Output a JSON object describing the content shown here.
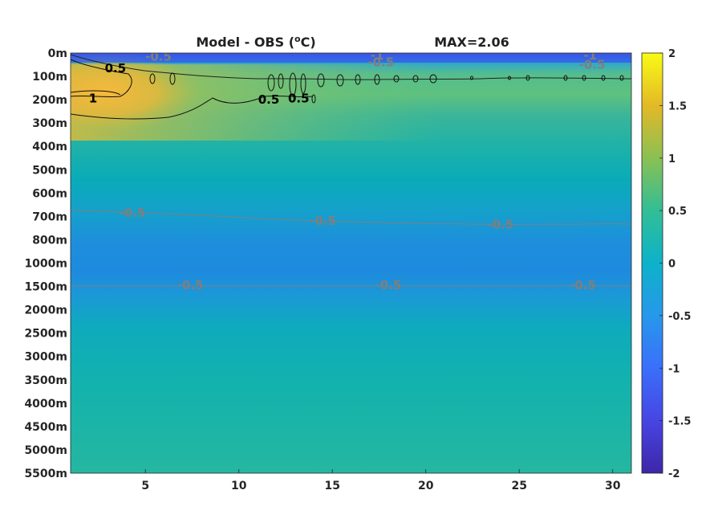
{
  "chart_data": {
    "type": "heatmap",
    "title": "Model - OBS (°C)",
    "title_parts": {
      "prefix": "Model - OBS (",
      "superscript": "o",
      "suffix": "C)"
    },
    "max_label": "MAX=2.06",
    "xlabel": "",
    "ylabel": "",
    "x_range": [
      1,
      31
    ],
    "x_ticks": [
      5,
      10,
      15,
      20,
      25,
      30
    ],
    "y_tick_labels": [
      "0m",
      "100m",
      "200m",
      "300m",
      "400m",
      "500m",
      "600m",
      "700m",
      "800m",
      "1000m",
      "1500m",
      "2000m",
      "2500m",
      "3000m",
      "3500m",
      "4000m",
      "4500m",
      "5000m",
      "5500m"
    ],
    "colorbar": {
      "range": [
        -2,
        2
      ],
      "ticks": [
        "2",
        "1.5",
        "1",
        "0.5",
        "0",
        "-0.5",
        "-1",
        "-1.5",
        "-2"
      ],
      "colormap": "parula"
    },
    "grid": false,
    "field_profile_by_depth_level": [
      {
        "depth": "0m",
        "value": -1.3
      },
      {
        "depth": "100m",
        "value": 0.9
      },
      {
        "depth": "200m",
        "value": 0.7
      },
      {
        "depth": "300m",
        "value": 0.2
      },
      {
        "depth": "400m",
        "value": 0.05
      },
      {
        "depth": "500m",
        "value": -0.2
      },
      {
        "depth": "600m",
        "value": -0.4
      },
      {
        "depth": "700m",
        "value": -0.55
      },
      {
        "depth": "800m",
        "value": -0.75
      },
      {
        "depth": "1000m",
        "value": -0.8
      },
      {
        "depth": "1500m",
        "value": -0.55
      },
      {
        "depth": "2000m",
        "value": -0.35
      },
      {
        "depth": "2500m",
        "value": -0.2
      },
      {
        "depth": "3000m",
        "value": -0.1
      },
      {
        "depth": "3500m",
        "value": 0.0
      },
      {
        "depth": "4000m",
        "value": 0.05
      },
      {
        "depth": "4500m",
        "value": 0.08
      },
      {
        "depth": "5000m",
        "value": 0.1
      },
      {
        "depth": "5500m",
        "value": 0.1
      }
    ],
    "warm_anomaly_core": {
      "x_range": [
        1,
        5
      ],
      "value": 1.5
    },
    "contour_labels": [
      {
        "text": "0.5",
        "x": 3.4,
        "y_level": 0.65,
        "color": "#000000"
      },
      {
        "text": "1",
        "x": 2.2,
        "y_level": 1.95,
        "color": "#000000"
      },
      {
        "text": "0.5",
        "x": 11.6,
        "y_level": 2.0,
        "color": "#000000"
      },
      {
        "text": "0.5",
        "x": 13.2,
        "y_level": 1.95,
        "color": "#000000"
      },
      {
        "text": "-0.5",
        "x": 5.7,
        "y_level": 0.15,
        "color": "#7f7f7f"
      },
      {
        "text": "-1",
        "x": 17.4,
        "y_level": 0.1,
        "color": "#7f7f7f"
      },
      {
        "text": "-0.5",
        "x": 17.6,
        "y_level": 0.4,
        "color": "#7f7f7f"
      },
      {
        "text": "-1",
        "x": 28.8,
        "y_level": 0.1,
        "color": "#7f7f7f"
      },
      {
        "text": "-0.5",
        "x": 28.9,
        "y_level": 0.5,
        "color": "#7f7f7f"
      },
      {
        "text": "-0.5",
        "x": 4.3,
        "y_level": 6.85,
        "color": "#7f7f7f"
      },
      {
        "text": "-0.5",
        "x": 14.5,
        "y_level": 7.2,
        "color": "#7f7f7f"
      },
      {
        "text": "-0.5",
        "x": 24.0,
        "y_level": 7.35,
        "color": "#7f7f7f"
      },
      {
        "text": "-0.5",
        "x": 7.4,
        "y_level": 9.95,
        "color": "#7f7f7f"
      },
      {
        "text": "-0.5",
        "x": 18.0,
        "y_level": 9.95,
        "color": "#7f7f7f"
      },
      {
        "text": "-0.5",
        "x": 28.4,
        "y_level": 9.95,
        "color": "#7f7f7f"
      }
    ]
  }
}
